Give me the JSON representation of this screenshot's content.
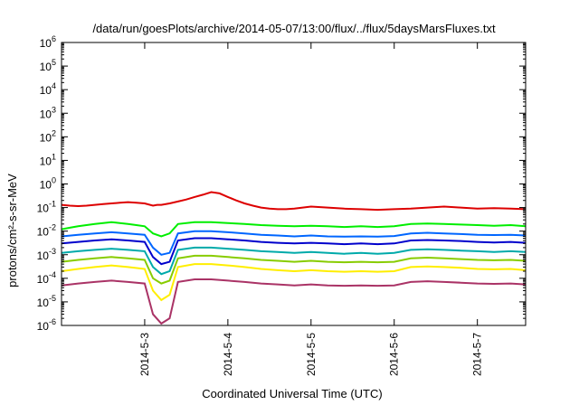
{
  "chart_data": {
    "type": "line",
    "title": "/data/run/goesPlots/archive/2014-05-07/13:00/flux/../flux/5daysMarsFluxes.txt",
    "xlabel": "Coordinated Universal Time (UTC)",
    "ylabel": "protons/cm²-s-sr-MeV",
    "y_scale": "log",
    "ylim": [
      1e-06,
      1000000.0
    ],
    "xlim": [
      2.0,
      7.58
    ],
    "x_unit": "day of May 2014",
    "x_ticks": [
      {
        "value": 3,
        "label": "2014-5-3"
      },
      {
        "value": 4,
        "label": "2014-5-4"
      },
      {
        "value": 5,
        "label": "2014-5-5"
      },
      {
        "value": 6,
        "label": "2014-5-6"
      },
      {
        "value": 7,
        "label": "2014-5-7"
      }
    ],
    "y_ticks": [
      {
        "value": 1e-06,
        "base": "10",
        "exp": "-6"
      },
      {
        "value": 1e-05,
        "base": "10",
        "exp": "-5"
      },
      {
        "value": 0.0001,
        "base": "10",
        "exp": "-4"
      },
      {
        "value": 0.001,
        "base": "10",
        "exp": "-3"
      },
      {
        "value": 0.01,
        "base": "10",
        "exp": "-2"
      },
      {
        "value": 0.1,
        "base": "10",
        "exp": "-1"
      },
      {
        "value": 1.0,
        "base": "10",
        "exp": "0"
      },
      {
        "value": 10.0,
        "base": "10",
        "exp": "1"
      },
      {
        "value": 100.0,
        "base": "10",
        "exp": "2"
      },
      {
        "value": 1000.0,
        "base": "10",
        "exp": "3"
      },
      {
        "value": 10000.0,
        "base": "10",
        "exp": "4"
      },
      {
        "value": 100000.0,
        "base": "10",
        "exp": "5"
      },
      {
        "value": 1000000.0,
        "base": "10",
        "exp": "6"
      }
    ],
    "grid": false,
    "legend": "none",
    "series": [
      {
        "color": "#dd0000",
        "x": [
          2.0,
          2.1,
          2.2,
          2.3,
          2.4,
          2.5,
          2.6,
          2.7,
          2.8,
          2.9,
          3.0,
          3.1,
          3.15,
          3.2,
          3.3,
          3.4,
          3.5,
          3.6,
          3.7,
          3.8,
          3.9,
          4.0,
          4.1,
          4.2,
          4.3,
          4.4,
          4.5,
          4.6,
          4.7,
          4.8,
          4.9,
          5.0,
          5.2,
          5.4,
          5.6,
          5.8,
          6.0,
          6.2,
          6.4,
          6.6,
          6.8,
          7.0,
          7.2,
          7.4,
          7.58
        ],
        "y": [
          0.13,
          0.12,
          0.115,
          0.12,
          0.13,
          0.14,
          0.15,
          0.16,
          0.17,
          0.16,
          0.15,
          0.12,
          0.13,
          0.13,
          0.15,
          0.18,
          0.22,
          0.28,
          0.35,
          0.45,
          0.4,
          0.28,
          0.2,
          0.15,
          0.12,
          0.1,
          0.09,
          0.085,
          0.085,
          0.09,
          0.1,
          0.11,
          0.1,
          0.09,
          0.085,
          0.08,
          0.085,
          0.09,
          0.1,
          0.11,
          0.1,
          0.09,
          0.095,
          0.09,
          0.085
        ]
      },
      {
        "color": "#00ee00",
        "x": [
          2.0,
          2.1,
          2.2,
          2.3,
          2.4,
          2.5,
          2.6,
          2.7,
          2.8,
          2.9,
          3.0,
          3.1,
          3.2,
          3.3,
          3.4,
          3.6,
          3.8,
          4.0,
          4.2,
          4.4,
          4.6,
          4.8,
          5.0,
          5.2,
          5.4,
          5.6,
          5.8,
          6.0,
          6.2,
          6.4,
          6.6,
          6.8,
          7.0,
          7.2,
          7.4,
          7.58
        ],
        "y": [
          0.012,
          0.014,
          0.016,
          0.018,
          0.02,
          0.022,
          0.024,
          0.022,
          0.02,
          0.018,
          0.016,
          0.008,
          0.006,
          0.008,
          0.02,
          0.024,
          0.024,
          0.022,
          0.02,
          0.018,
          0.017,
          0.016,
          0.017,
          0.016,
          0.015,
          0.016,
          0.015,
          0.016,
          0.02,
          0.021,
          0.02,
          0.019,
          0.018,
          0.017,
          0.018,
          0.016
        ]
      },
      {
        "color": "#0066ff",
        "x": [
          2.0,
          2.2,
          2.4,
          2.6,
          2.8,
          3.0,
          3.1,
          3.2,
          3.3,
          3.4,
          3.6,
          3.8,
          4.0,
          4.2,
          4.4,
          4.6,
          4.8,
          5.0,
          5.2,
          5.4,
          5.6,
          5.8,
          6.0,
          6.2,
          6.4,
          6.6,
          6.8,
          7.0,
          7.2,
          7.4,
          7.58
        ],
        "y": [
          0.006,
          0.007,
          0.008,
          0.009,
          0.008,
          0.007,
          0.002,
          0.001,
          0.0012,
          0.008,
          0.01,
          0.01,
          0.009,
          0.008,
          0.007,
          0.0065,
          0.006,
          0.0065,
          0.006,
          0.0058,
          0.006,
          0.0058,
          0.0062,
          0.008,
          0.0085,
          0.008,
          0.0075,
          0.007,
          0.0068,
          0.007,
          0.0065
        ]
      },
      {
        "color": "#0000cc",
        "x": [
          2.0,
          2.2,
          2.4,
          2.6,
          2.8,
          3.0,
          3.1,
          3.2,
          3.3,
          3.4,
          3.6,
          3.8,
          4.0,
          4.2,
          4.4,
          4.6,
          4.8,
          5.0,
          5.2,
          5.4,
          5.6,
          5.8,
          6.0,
          6.2,
          6.4,
          6.6,
          6.8,
          7.0,
          7.2,
          7.4,
          7.58
        ],
        "y": [
          0.003,
          0.0035,
          0.004,
          0.0045,
          0.004,
          0.0035,
          0.0008,
          0.0004,
          0.0005,
          0.004,
          0.005,
          0.005,
          0.0045,
          0.004,
          0.0035,
          0.0032,
          0.003,
          0.0032,
          0.003,
          0.0028,
          0.003,
          0.0028,
          0.003,
          0.004,
          0.0042,
          0.004,
          0.0038,
          0.0035,
          0.0033,
          0.0035,
          0.0032
        ]
      },
      {
        "color": "#00aaaa",
        "x": [
          2.0,
          2.2,
          2.4,
          2.6,
          2.8,
          3.0,
          3.1,
          3.2,
          3.3,
          3.4,
          3.6,
          3.8,
          4.0,
          4.2,
          4.4,
          4.6,
          4.8,
          5.0,
          5.2,
          5.4,
          5.6,
          5.8,
          6.0,
          6.2,
          6.4,
          6.6,
          6.8,
          7.0,
          7.2,
          7.4,
          7.58
        ],
        "y": [
          0.0012,
          0.0014,
          0.0016,
          0.0018,
          0.0016,
          0.0014,
          0.0003,
          0.00015,
          0.0002,
          0.0016,
          0.002,
          0.002,
          0.0018,
          0.0016,
          0.0014,
          0.0013,
          0.0012,
          0.0013,
          0.0012,
          0.0011,
          0.0012,
          0.0011,
          0.0012,
          0.0016,
          0.0017,
          0.0016,
          0.0015,
          0.0014,
          0.0013,
          0.0014,
          0.0013
        ]
      },
      {
        "color": "#88cc00",
        "x": [
          2.0,
          2.2,
          2.4,
          2.6,
          2.8,
          3.0,
          3.1,
          3.2,
          3.3,
          3.4,
          3.6,
          3.8,
          4.0,
          4.2,
          4.4,
          4.6,
          4.8,
          5.0,
          5.2,
          5.4,
          5.6,
          5.8,
          6.0,
          6.2,
          6.4,
          6.6,
          6.8,
          7.0,
          7.2,
          7.4,
          7.58
        ],
        "y": [
          0.0005,
          0.0006,
          0.0007,
          0.0008,
          0.0007,
          0.0006,
          0.0001,
          6e-05,
          8e-05,
          0.0007,
          0.0009,
          0.0009,
          0.0008,
          0.0007,
          0.0006,
          0.00055,
          0.0005,
          0.00055,
          0.0005,
          0.00048,
          0.0005,
          0.00048,
          0.0005,
          0.0007,
          0.00075,
          0.0007,
          0.00065,
          0.0006,
          0.00058,
          0.0006,
          0.00055
        ]
      },
      {
        "color": "#ffee00",
        "x": [
          2.0,
          2.2,
          2.4,
          2.6,
          2.8,
          3.0,
          3.1,
          3.2,
          3.3,
          3.4,
          3.6,
          3.8,
          4.0,
          4.2,
          4.4,
          4.6,
          4.8,
          5.0,
          5.2,
          5.4,
          5.6,
          5.8,
          6.0,
          6.2,
          6.4,
          6.6,
          6.8,
          7.0,
          7.2,
          7.4,
          7.58
        ],
        "y": [
          0.0002,
          0.00025,
          0.0003,
          0.00035,
          0.0003,
          0.00025,
          3e-05,
          1.2e-05,
          2e-05,
          0.0003,
          0.0004,
          0.0004,
          0.00035,
          0.0003,
          0.00025,
          0.00022,
          0.0002,
          0.00022,
          0.0002,
          0.00019,
          0.0002,
          0.00019,
          0.0002,
          0.0003,
          0.00032,
          0.0003,
          0.00028,
          0.00025,
          0.00024,
          0.00025,
          0.00022
        ]
      },
      {
        "color": "#aa3366",
        "x": [
          2.0,
          2.2,
          2.4,
          2.6,
          2.8,
          3.0,
          3.1,
          3.2,
          3.3,
          3.4,
          3.6,
          3.8,
          4.0,
          4.2,
          4.4,
          4.6,
          4.8,
          5.0,
          5.2,
          5.4,
          5.6,
          5.8,
          6.0,
          6.2,
          6.4,
          6.6,
          6.8,
          7.0,
          7.2,
          7.4,
          7.58
        ],
        "y": [
          5e-05,
          6e-05,
          7e-05,
          8e-05,
          7e-05,
          6e-05,
          3e-06,
          1.2e-06,
          2e-06,
          7e-05,
          9e-05,
          9e-05,
          8e-05,
          7e-05,
          6e-05,
          5.5e-05,
          5e-05,
          5.5e-05,
          5e-05,
          4.8e-05,
          5e-05,
          4.8e-05,
          5e-05,
          7e-05,
          7.5e-05,
          7e-05,
          6.5e-05,
          6e-05,
          5.8e-05,
          6e-05,
          5.5e-05
        ]
      }
    ]
  }
}
